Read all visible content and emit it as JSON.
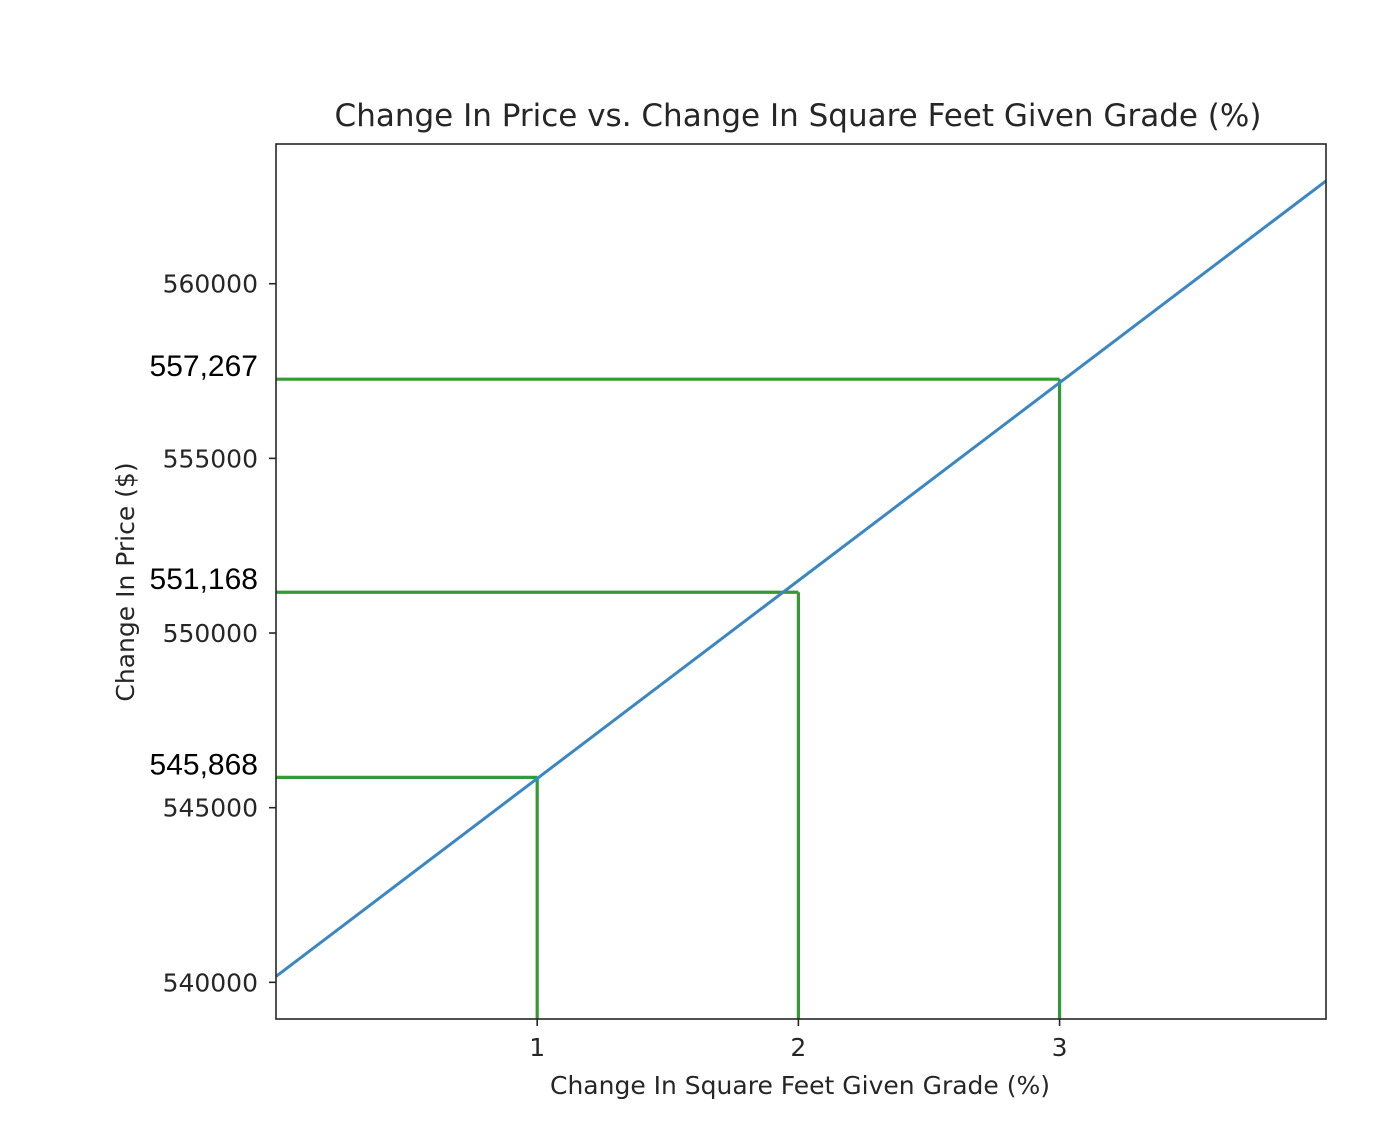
{
  "chart_data": {
    "type": "line",
    "title": "Change In Price vs. Change In Square Feet Given Grade (%)",
    "xlabel": "Change In Square Feet Given Grade (%)",
    "ylabel": "Change In Price ($)",
    "xlim": [
      0,
      4.02
    ],
    "ylim": [
      538950,
      564000
    ],
    "xticks": [
      1,
      2,
      3
    ],
    "yticks": [
      540000,
      545000,
      550000,
      555000,
      560000
    ],
    "line": {
      "color": "#3b87c4",
      "x": [
        0,
        4.02
      ],
      "y": [
        540170,
        562944
      ]
    },
    "reference_points": [
      {
        "x": 1,
        "y": 545868,
        "label": "545,868"
      },
      {
        "x": 2,
        "y": 551168,
        "label": "551,168"
      },
      {
        "x": 3,
        "y": 557267,
        "label": "557,267"
      }
    ],
    "reference_color": "#349a34",
    "grid": false,
    "legend": "none"
  }
}
